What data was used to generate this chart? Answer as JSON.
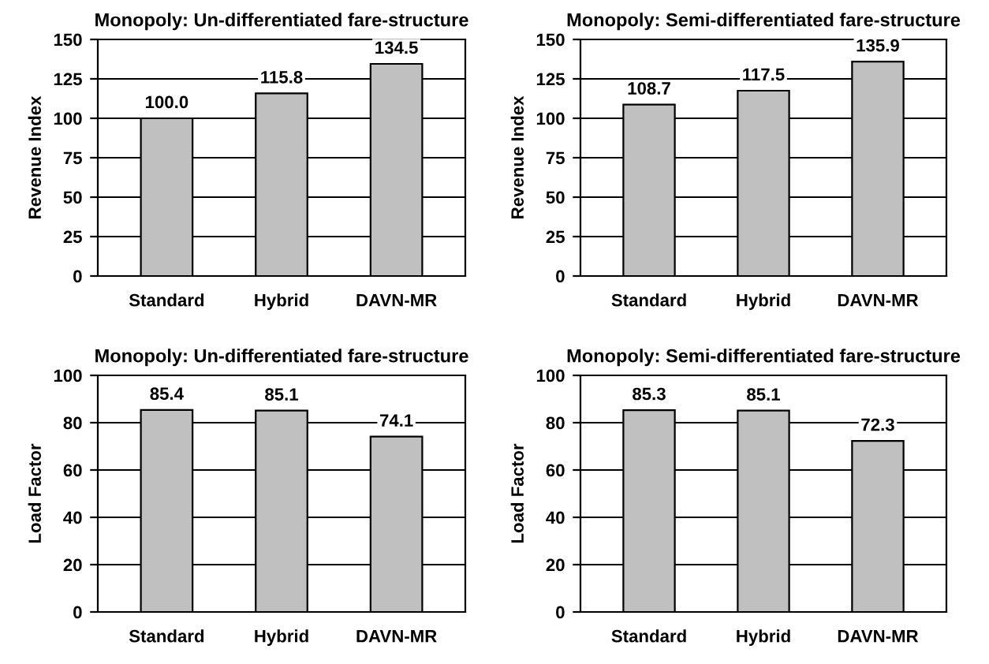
{
  "chart_data": [
    {
      "type": "bar",
      "title": "Monopoly: Un-differentiated fare-structure",
      "ylabel": "Revenue Index",
      "categories": [
        "Standard",
        "Hybrid",
        "DAVN-MR"
      ],
      "values": [
        100.0,
        115.8,
        134.5
      ],
      "value_labels": [
        "100.0",
        "115.8",
        "134.5"
      ],
      "color": "#c0c0c0",
      "ylim": [
        0,
        150
      ],
      "yticks": [
        0,
        25,
        50,
        75,
        100,
        125,
        150
      ],
      "grid": "y"
    },
    {
      "type": "bar",
      "title": "Monopoly: Semi-differentiated fare-structure",
      "ylabel": "Revenue Index",
      "categories": [
        "Standard",
        "Hybrid",
        "DAVN-MR"
      ],
      "values": [
        108.7,
        117.5,
        135.9
      ],
      "value_labels": [
        "108.7",
        "117.5",
        "135.9"
      ],
      "color": "#c0c0c0",
      "ylim": [
        0,
        150
      ],
      "yticks": [
        0,
        25,
        50,
        75,
        100,
        125,
        150
      ],
      "grid": "y"
    },
    {
      "type": "bar",
      "title": "Monopoly: Un-differentiated fare-structure",
      "ylabel": "Load Factor",
      "categories": [
        "Standard",
        "Hybrid",
        "DAVN-MR"
      ],
      "values": [
        85.4,
        85.1,
        74.1
      ],
      "value_labels": [
        "85.4",
        "85.1",
        "74.1"
      ],
      "color": "#c0c0c0",
      "ylim": [
        0,
        100
      ],
      "yticks": [
        0,
        20,
        40,
        60,
        80,
        100
      ],
      "grid": "y"
    },
    {
      "type": "bar",
      "title": "Monopoly: Semi-differentiated fare-structure",
      "ylabel": "Load Factor",
      "categories": [
        "Standard",
        "Hybrid",
        "DAVN-MR"
      ],
      "values": [
        85.3,
        85.1,
        72.3
      ],
      "value_labels": [
        "85.3",
        "85.1",
        "72.3"
      ],
      "color": "#c0c0c0",
      "ylim": [
        0,
        100
      ],
      "yticks": [
        0,
        20,
        40,
        60,
        80,
        100
      ],
      "grid": "y"
    }
  ]
}
